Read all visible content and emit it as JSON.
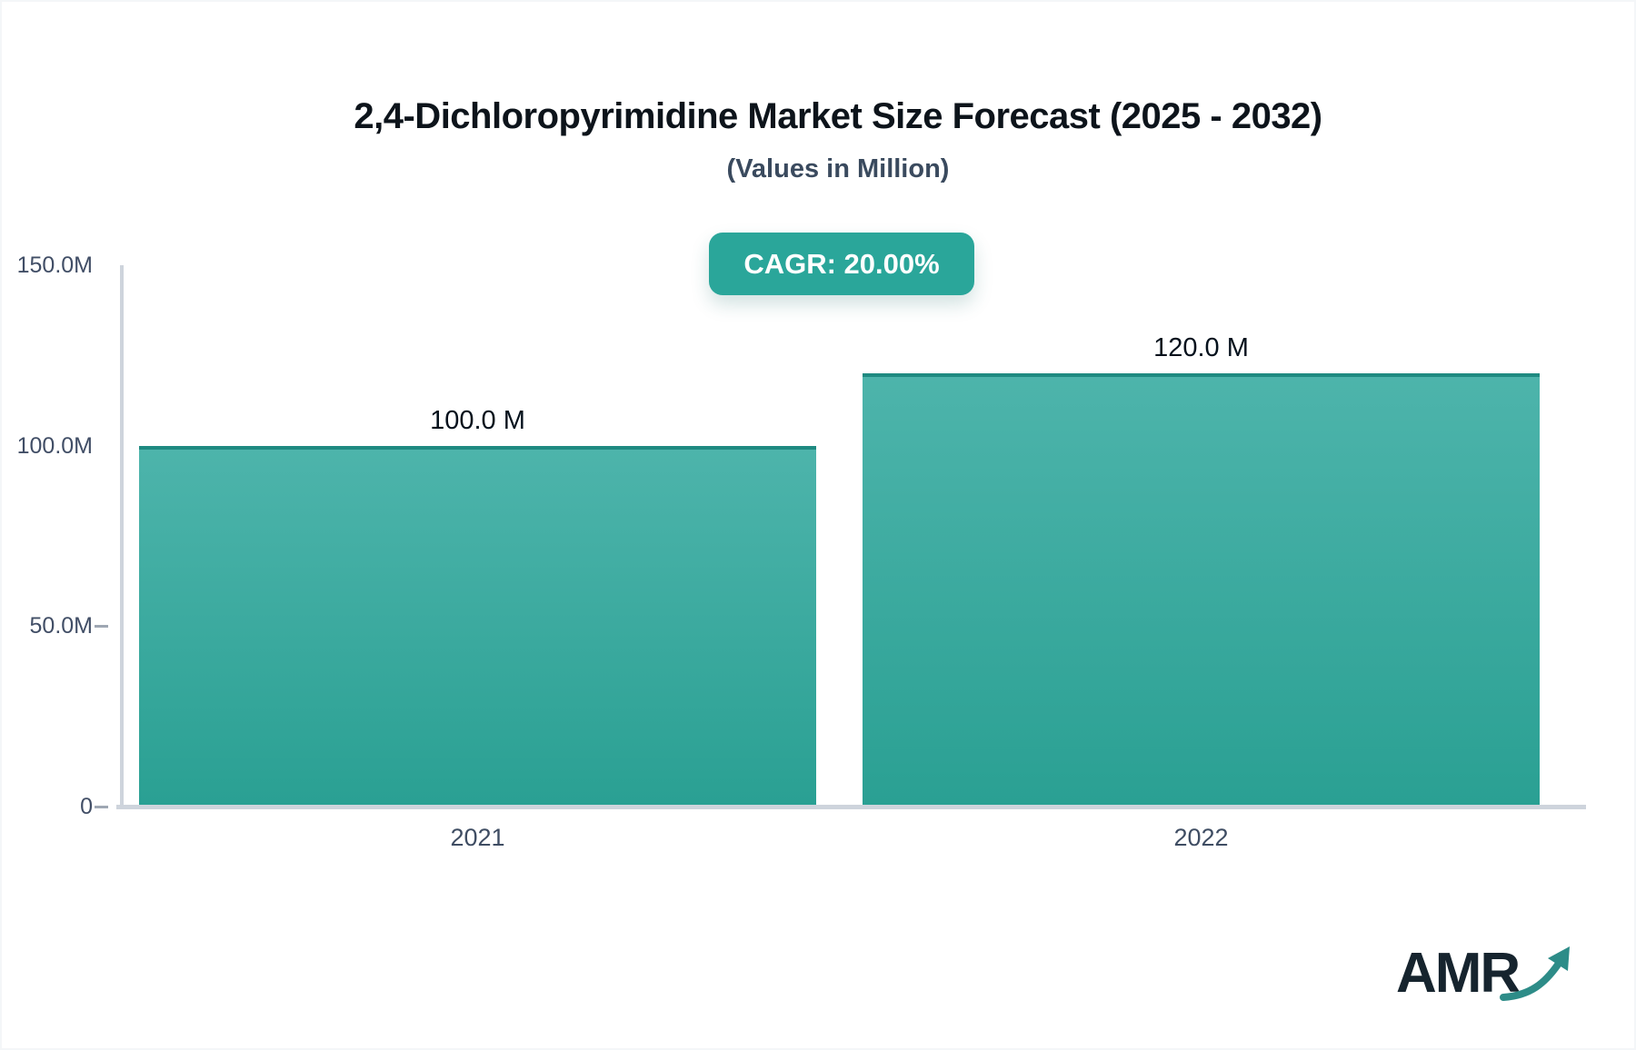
{
  "header": {
    "title": "2,4-Dichloropyrimidine Market Size Forecast (2025 - 2032)",
    "subtitle": "(Values in Million)",
    "cagr_label": "CAGR: 20.00%"
  },
  "chart_data": {
    "type": "bar",
    "title": "2,4-Dichloropyrimidine Market Size Forecast (2025 - 2032)",
    "subtitle": "(Values in Million)",
    "unit": "Million",
    "cagr_percent": "20.00%",
    "categories": [
      "2021",
      "2022"
    ],
    "values": [
      100,
      120
    ],
    "bar_labels": [
      "100.0 M",
      "120.0 M"
    ],
    "y_axis": [
      {
        "label": "150.0M",
        "value": 150,
        "dash": false
      },
      {
        "label": "100.0M",
        "value": 100,
        "dash": false
      },
      {
        "label": "50.0M",
        "value": 50,
        "dash": true
      },
      {
        "label": "0",
        "value": 0,
        "dash": true
      }
    ],
    "ylim": [
      0,
      150
    ],
    "xlabel": "",
    "ylabel": "",
    "grid": false,
    "legend": "none"
  },
  "branding": {
    "logo_text": "AMR"
  },
  "colors": {
    "badge_bg": "#2aa69a",
    "bar_gradient_top": "#4db4ab",
    "bar_gradient_bottom": "#2aa093",
    "bar_top_stroke": "#1f8a81",
    "axis_line": "#ced4dc",
    "tick_dash": "#9ea7b3",
    "title_color": "#0d141b",
    "subtitle_color": "#3a4a5e",
    "y_tick_label_color": "#414e66",
    "x_tick_label_color": "#3f4d63",
    "value_label_color": "#05111c",
    "logo_text_color": "#16242e",
    "logo_arrow_color": "#2d8c88"
  }
}
